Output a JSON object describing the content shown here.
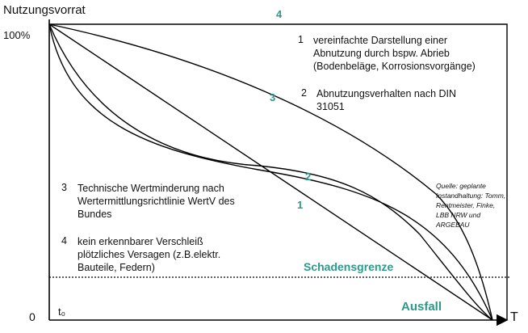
{
  "axes": {
    "y_title": "Nutzungsvorrat",
    "y_top": "100%",
    "origin": "0",
    "t0": "t₀",
    "x_end": "T"
  },
  "curve_labels": {
    "c1": "1",
    "c2": "2",
    "c3": "3",
    "c4": "4"
  },
  "legend": [
    {
      "num": "1",
      "lines": [
        "vereinfachte Darstellung einer",
        "Abnutzung durch bspw. Abrieb",
        "(Bodenbeläge, Korrosionsvorgänge)"
      ]
    },
    {
      "num": "2",
      "lines": [
        "Abnutzungsverhalten nach DIN",
        "31051"
      ]
    },
    {
      "num": "3",
      "lines": [
        "Technische Wertminderung nach",
        "Wertermittlungsrichtlinie WertV des",
        "Bundes"
      ]
    },
    {
      "num": "4",
      "lines": [
        "kein erkennbarer Verschleiß",
        "plötzliches Versagen (z.B.elektr.",
        "Bauteile, Federn)"
      ]
    }
  ],
  "source": {
    "lines": [
      "Quelle: geplante",
      "Instandhaltung: Tomm,",
      "Rentmeister, Finke,",
      "LBB NRW und",
      "ARGEBAU"
    ]
  },
  "zones": {
    "threshold": "Schadensgrenze",
    "failure": "Ausfall"
  },
  "colors": {
    "accent": "#2a9a8a",
    "line": "#000000"
  }
}
